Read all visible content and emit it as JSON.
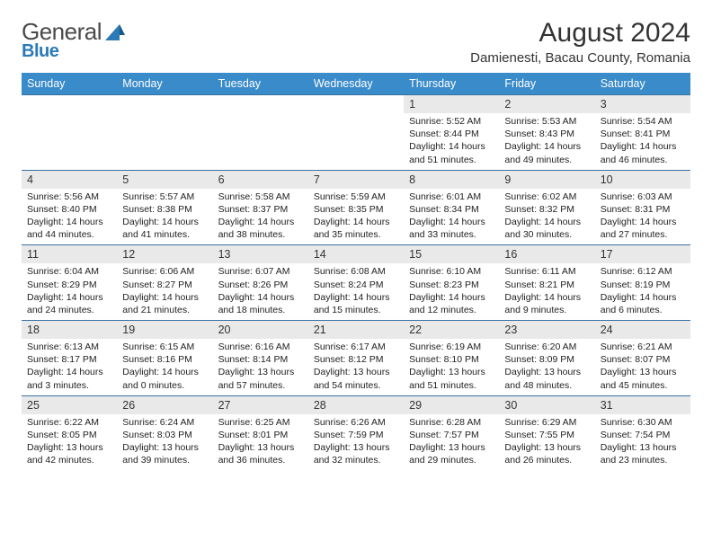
{
  "logo": {
    "text1": "General",
    "text2": "Blue"
  },
  "header": {
    "month": "August 2024",
    "location": "Damienesti, Bacau County, Romania"
  },
  "colors": {
    "header_bg": "#3a8bc9",
    "border": "#3a70a0",
    "daynum_bg": "#e9e9e9",
    "logo_blue": "#2a7ab8"
  },
  "day_names": [
    "Sunday",
    "Monday",
    "Tuesday",
    "Wednesday",
    "Thursday",
    "Friday",
    "Saturday"
  ],
  "weeks": [
    [
      null,
      null,
      null,
      null,
      {
        "n": "1",
        "sunrise": "5:52 AM",
        "sunset": "8:44 PM",
        "daylight_a": "Daylight: 14 hours",
        "daylight_b": "and 51 minutes."
      },
      {
        "n": "2",
        "sunrise": "5:53 AM",
        "sunset": "8:43 PM",
        "daylight_a": "Daylight: 14 hours",
        "daylight_b": "and 49 minutes."
      },
      {
        "n": "3",
        "sunrise": "5:54 AM",
        "sunset": "8:41 PM",
        "daylight_a": "Daylight: 14 hours",
        "daylight_b": "and 46 minutes."
      }
    ],
    [
      {
        "n": "4",
        "sunrise": "5:56 AM",
        "sunset": "8:40 PM",
        "daylight_a": "Daylight: 14 hours",
        "daylight_b": "and 44 minutes."
      },
      {
        "n": "5",
        "sunrise": "5:57 AM",
        "sunset": "8:38 PM",
        "daylight_a": "Daylight: 14 hours",
        "daylight_b": "and 41 minutes."
      },
      {
        "n": "6",
        "sunrise": "5:58 AM",
        "sunset": "8:37 PM",
        "daylight_a": "Daylight: 14 hours",
        "daylight_b": "and 38 minutes."
      },
      {
        "n": "7",
        "sunrise": "5:59 AM",
        "sunset": "8:35 PM",
        "daylight_a": "Daylight: 14 hours",
        "daylight_b": "and 35 minutes."
      },
      {
        "n": "8",
        "sunrise": "6:01 AM",
        "sunset": "8:34 PM",
        "daylight_a": "Daylight: 14 hours",
        "daylight_b": "and 33 minutes."
      },
      {
        "n": "9",
        "sunrise": "6:02 AM",
        "sunset": "8:32 PM",
        "daylight_a": "Daylight: 14 hours",
        "daylight_b": "and 30 minutes."
      },
      {
        "n": "10",
        "sunrise": "6:03 AM",
        "sunset": "8:31 PM",
        "daylight_a": "Daylight: 14 hours",
        "daylight_b": "and 27 minutes."
      }
    ],
    [
      {
        "n": "11",
        "sunrise": "6:04 AM",
        "sunset": "8:29 PM",
        "daylight_a": "Daylight: 14 hours",
        "daylight_b": "and 24 minutes."
      },
      {
        "n": "12",
        "sunrise": "6:06 AM",
        "sunset": "8:27 PM",
        "daylight_a": "Daylight: 14 hours",
        "daylight_b": "and 21 minutes."
      },
      {
        "n": "13",
        "sunrise": "6:07 AM",
        "sunset": "8:26 PM",
        "daylight_a": "Daylight: 14 hours",
        "daylight_b": "and 18 minutes."
      },
      {
        "n": "14",
        "sunrise": "6:08 AM",
        "sunset": "8:24 PM",
        "daylight_a": "Daylight: 14 hours",
        "daylight_b": "and 15 minutes."
      },
      {
        "n": "15",
        "sunrise": "6:10 AM",
        "sunset": "8:23 PM",
        "daylight_a": "Daylight: 14 hours",
        "daylight_b": "and 12 minutes."
      },
      {
        "n": "16",
        "sunrise": "6:11 AM",
        "sunset": "8:21 PM",
        "daylight_a": "Daylight: 14 hours",
        "daylight_b": "and 9 minutes."
      },
      {
        "n": "17",
        "sunrise": "6:12 AM",
        "sunset": "8:19 PM",
        "daylight_a": "Daylight: 14 hours",
        "daylight_b": "and 6 minutes."
      }
    ],
    [
      {
        "n": "18",
        "sunrise": "6:13 AM",
        "sunset": "8:17 PM",
        "daylight_a": "Daylight: 14 hours",
        "daylight_b": "and 3 minutes."
      },
      {
        "n": "19",
        "sunrise": "6:15 AM",
        "sunset": "8:16 PM",
        "daylight_a": "Daylight: 14 hours",
        "daylight_b": "and 0 minutes."
      },
      {
        "n": "20",
        "sunrise": "6:16 AM",
        "sunset": "8:14 PM",
        "daylight_a": "Daylight: 13 hours",
        "daylight_b": "and 57 minutes."
      },
      {
        "n": "21",
        "sunrise": "6:17 AM",
        "sunset": "8:12 PM",
        "daylight_a": "Daylight: 13 hours",
        "daylight_b": "and 54 minutes."
      },
      {
        "n": "22",
        "sunrise": "6:19 AM",
        "sunset": "8:10 PM",
        "daylight_a": "Daylight: 13 hours",
        "daylight_b": "and 51 minutes."
      },
      {
        "n": "23",
        "sunrise": "6:20 AM",
        "sunset": "8:09 PM",
        "daylight_a": "Daylight: 13 hours",
        "daylight_b": "and 48 minutes."
      },
      {
        "n": "24",
        "sunrise": "6:21 AM",
        "sunset": "8:07 PM",
        "daylight_a": "Daylight: 13 hours",
        "daylight_b": "and 45 minutes."
      }
    ],
    [
      {
        "n": "25",
        "sunrise": "6:22 AM",
        "sunset": "8:05 PM",
        "daylight_a": "Daylight: 13 hours",
        "daylight_b": "and 42 minutes."
      },
      {
        "n": "26",
        "sunrise": "6:24 AM",
        "sunset": "8:03 PM",
        "daylight_a": "Daylight: 13 hours",
        "daylight_b": "and 39 minutes."
      },
      {
        "n": "27",
        "sunrise": "6:25 AM",
        "sunset": "8:01 PM",
        "daylight_a": "Daylight: 13 hours",
        "daylight_b": "and 36 minutes."
      },
      {
        "n": "28",
        "sunrise": "6:26 AM",
        "sunset": "7:59 PM",
        "daylight_a": "Daylight: 13 hours",
        "daylight_b": "and 32 minutes."
      },
      {
        "n": "29",
        "sunrise": "6:28 AM",
        "sunset": "7:57 PM",
        "daylight_a": "Daylight: 13 hours",
        "daylight_b": "and 29 minutes."
      },
      {
        "n": "30",
        "sunrise": "6:29 AM",
        "sunset": "7:55 PM",
        "daylight_a": "Daylight: 13 hours",
        "daylight_b": "and 26 minutes."
      },
      {
        "n": "31",
        "sunrise": "6:30 AM",
        "sunset": "7:54 PM",
        "daylight_a": "Daylight: 13 hours",
        "daylight_b": "and 23 minutes."
      }
    ]
  ],
  "labels": {
    "sunrise_prefix": "Sunrise: ",
    "sunset_prefix": "Sunset: "
  }
}
